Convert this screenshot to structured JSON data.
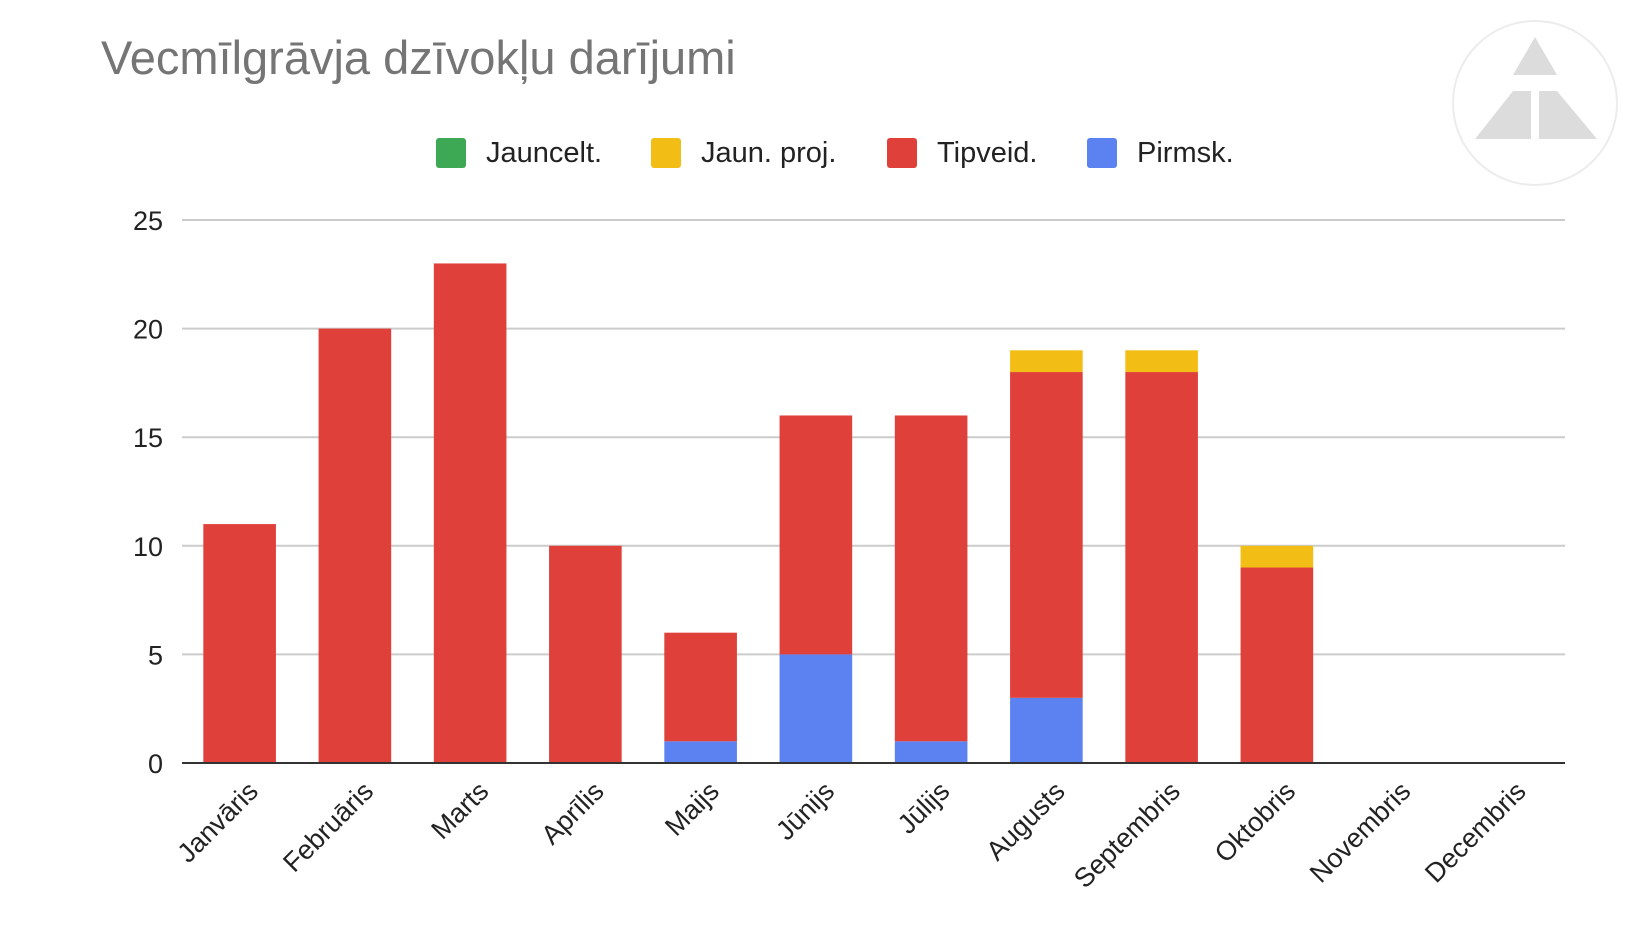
{
  "chart_data": {
    "type": "bar",
    "stacked": true,
    "title": "Vecmīlgrāvja dzīvokļu darījumi",
    "xlabel": "",
    "ylabel": "",
    "ylim": [
      0,
      25
    ],
    "yticks": [
      "0",
      "5",
      "10",
      "15",
      "20",
      "25"
    ],
    "grid": true,
    "legend_position": "top",
    "categories": [
      "Janvāris",
      "Februāris",
      "Marts",
      "Aprīlis",
      "Maijs",
      "Jūnijs",
      "Jūlijs",
      "Augusts",
      "Septembris",
      "Oktobris",
      "Novembris",
      "Decembris"
    ],
    "series": [
      {
        "name": "Pirmsk.",
        "color": "#5b82f0",
        "values": [
          0,
          0,
          0,
          0,
          1,
          5,
          1,
          3,
          0,
          0,
          0,
          0
        ]
      },
      {
        "name": "Tipveid.",
        "color": "#e0403a",
        "values": [
          11,
          20,
          23,
          10,
          5,
          11,
          15,
          15,
          18,
          9,
          0,
          0
        ]
      },
      {
        "name": "Jaun. proj.",
        "color": "#f2be16",
        "values": [
          0,
          0,
          0,
          0,
          0,
          0,
          0,
          1,
          1,
          1,
          0,
          0
        ]
      },
      {
        "name": "Jauncelt.",
        "color": "#3ea955",
        "values": [
          0,
          0,
          0,
          0,
          0,
          0,
          0,
          0,
          0,
          0,
          0,
          0
        ]
      }
    ],
    "legend_order": [
      "Jauncelt.",
      "Jaun. proj.",
      "Tipveid.",
      "Pirmsk."
    ]
  },
  "logo": {
    "icon": "triangle-logo-icon"
  }
}
